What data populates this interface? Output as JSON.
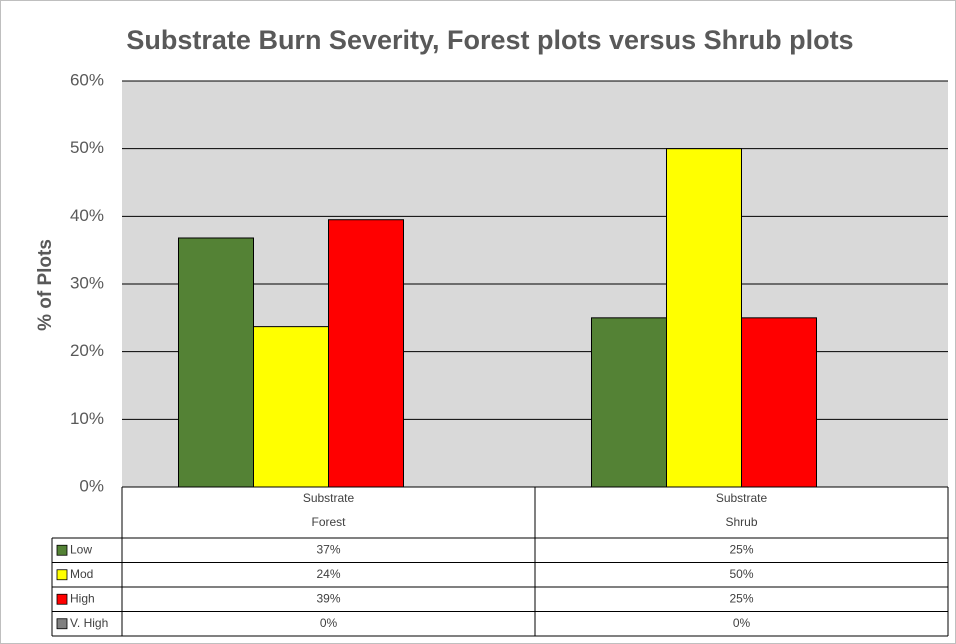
{
  "chart_data": {
    "type": "bar",
    "title": "Substrate Burn Severity, Forest plots versus Shrub plots",
    "y_label": "% of Plots",
    "categories": [
      [
        "Substrate",
        "Forest"
      ],
      [
        "Substrate",
        "Shrub"
      ]
    ],
    "series": [
      {
        "name": "Low",
        "color": "#548235",
        "values": [
          36.8,
          25
        ],
        "value_labels": [
          "37%",
          "25%"
        ]
      },
      {
        "name": "Mod",
        "color": "#ffff00",
        "values": [
          23.7,
          50
        ],
        "value_labels": [
          "24%",
          "50%"
        ]
      },
      {
        "name": "High",
        "color": "#ff0000",
        "values": [
          39.5,
          25
        ],
        "value_labels": [
          "39%",
          "25%"
        ]
      },
      {
        "name": "V. High",
        "color": "#808080",
        "values": [
          0,
          0
        ],
        "value_labels": [
          "0%",
          "0%"
        ]
      }
    ],
    "ylim": [
      0,
      60
    ],
    "yticks": [
      {
        "value": 0,
        "label": "0%"
      },
      {
        "value": 10,
        "label": "10%"
      },
      {
        "value": 20,
        "label": "20%"
      },
      {
        "value": 30,
        "label": "30%"
      },
      {
        "value": 40,
        "label": "40%"
      },
      {
        "value": 50,
        "label": "50%"
      },
      {
        "value": 60,
        "label": "60%"
      }
    ],
    "grid": true
  }
}
